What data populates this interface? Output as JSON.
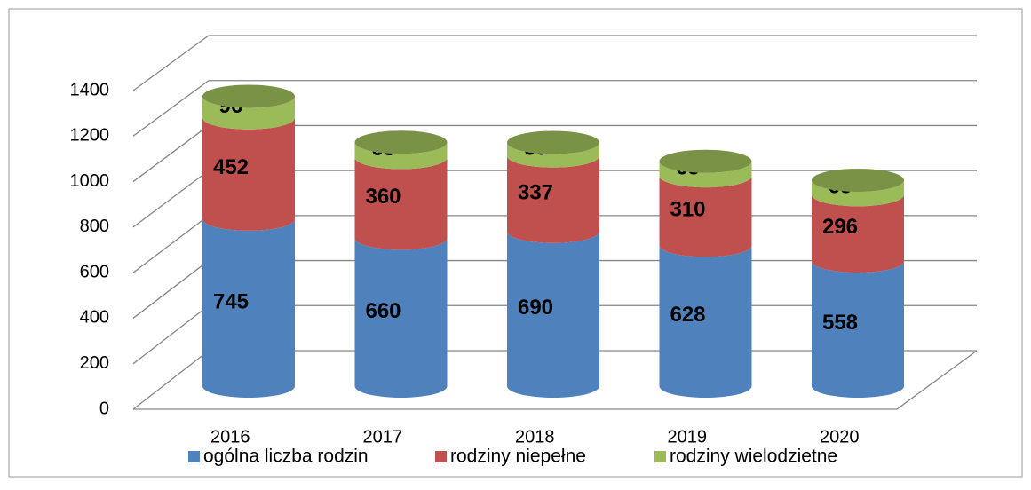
{
  "chart_data": {
    "type": "bar3d_stacked_cylinder",
    "categories": [
      "2016",
      "2017",
      "2018",
      "2019",
      "2020"
    ],
    "series": [
      {
        "name": "ogólna liczba rodzin",
        "color": "#4f81bd",
        "values": [
          745,
          660,
          690,
          628,
          558
        ]
      },
      {
        "name": "rodziny niepełne",
        "color": "#c0504d",
        "values": [
          452,
          360,
          337,
          310,
          296
        ]
      },
      {
        "name": "rodziny wielodzietne",
        "color": "#9bbb59",
        "values": [
          96,
          68,
          60,
          65,
          65
        ]
      }
    ],
    "ylim": [
      0,
      1400
    ],
    "yticks": [
      0,
      200,
      400,
      600,
      800,
      1000,
      1200,
      1400
    ],
    "grid": true,
    "legend": "bottom"
  }
}
